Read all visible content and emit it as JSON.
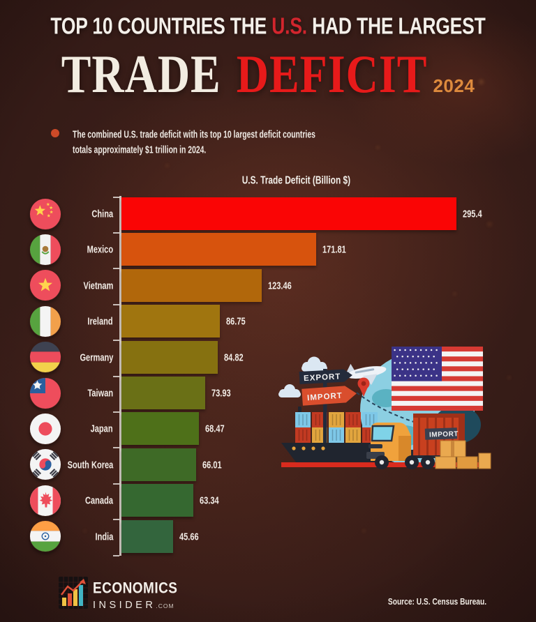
{
  "title": {
    "line1_pre": "TOP 10 COUNTRIES THE ",
    "line1_highlight": "U.S.",
    "line1_post": " HAD THE LARGEST",
    "line2_word1": "TRADE",
    "line2_word2": "DEFICIT",
    "year": "2024"
  },
  "note": {
    "line1": "The combined U.S. trade deficit with its top 10 largest deficit countries",
    "line2_pre": "totals approximately ",
    "line2_bold": "$1",
    "line2_post": " trillion in 2024."
  },
  "chart_data": {
    "type": "bar",
    "orientation": "horizontal",
    "title": "U.S. Trade Deficit (Billion $)",
    "unit": "billion USD",
    "year": "2024",
    "categories": [
      "China",
      "Mexico",
      "Vietnam",
      "Ireland",
      "Germany",
      "Taiwan",
      "Japan",
      "South Korea",
      "Canada",
      "India"
    ],
    "values": [
      295.4,
      171.81,
      123.46,
      86.75,
      84.82,
      73.93,
      68.47,
      66.01,
      63.34,
      45.66
    ],
    "value_labels": [
      "295.4",
      "171.81",
      "123.46",
      "86.75",
      "84.82",
      "73.93",
      "68.47",
      "66.01",
      "63.34",
      "45.66"
    ],
    "bar_colors": [
      "#fa0505",
      "#d7530d",
      "#b1670b",
      "#a0750f",
      "#867110",
      "#6a7016",
      "#4e7019",
      "#3e6a26",
      "#356830",
      "#33653d"
    ],
    "flags": [
      "china",
      "mexico",
      "vietnam",
      "ireland",
      "germany",
      "taiwan",
      "japan",
      "south-korea",
      "canada",
      "india"
    ],
    "xlim": [
      0,
      300
    ],
    "gridlines": false,
    "legend": null
  },
  "illustration": {
    "export_label": "EXPORT",
    "import_label": "IMPORT",
    "truck_label": "IMPORT"
  },
  "footer": {
    "brand_line1": "ECONOMICS",
    "brand_line2": "INSIDER",
    "brand_suffix": ".COM",
    "source": "Source: U.S. Census Bureau."
  },
  "colors": {
    "background": "#2c1715",
    "accent_red": "#e71a1a",
    "title_white": "#f2ece1",
    "year_orange": "#dd8a3d",
    "bullet": "#cd4a28",
    "axis": "#e2dbd6"
  }
}
